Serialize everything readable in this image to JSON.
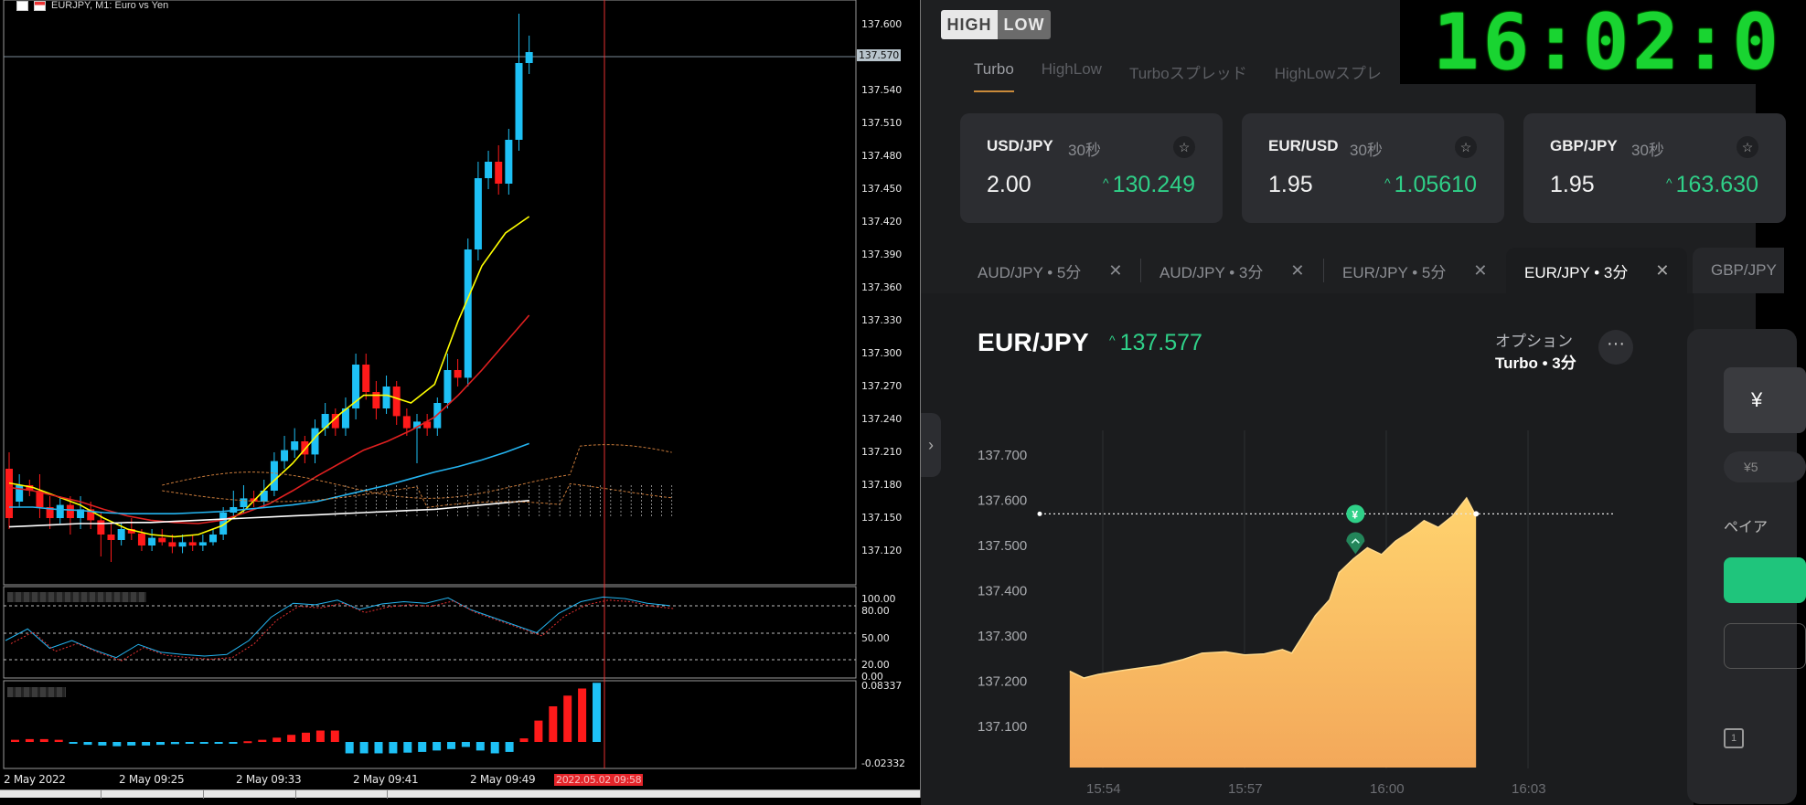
{
  "mt4": {
    "title": "EURJPY, M1:  Euro vs Yen",
    "current_price_label": "137.570",
    "price_axis": [
      "137.600",
      "137.540",
      "137.510",
      "137.480",
      "137.450",
      "137.420",
      "137.390",
      "137.360",
      "137.330",
      "137.300",
      "137.270",
      "137.240",
      "137.210",
      "137.180",
      "137.150",
      "137.120"
    ],
    "stoch_axis": [
      "100.00",
      "80.00",
      "50.00",
      "20.00",
      "0.00"
    ],
    "hist_axis": [
      "0.08337",
      "-0.02332"
    ],
    "time_axis": [
      "2 May 2022",
      "2 May 09:25",
      "2 May 09:33",
      "2 May 09:41",
      "2 May 09:49"
    ],
    "time_highlight": "2022.05.02 09:58",
    "colors": {
      "up": "#1ec0f5",
      "down": "#ff1a1a",
      "ma_fast": "#ffff00",
      "ma_mid": "#e02020",
      "ma_slow": "#24b4f0",
      "ma_long": "#ffffff",
      "cloud": "#c87a3a"
    }
  },
  "highlow": {
    "logo_high": "HIGH",
    "logo_low": "LOW",
    "clock": "16:02:0",
    "tabs": [
      "Turbo",
      "HighLow",
      "Turboスプレッド",
      "HighLowスプレ"
    ],
    "cards": [
      {
        "pair": "USD/JPY",
        "duration": "30秒",
        "payout": "2.00",
        "price": "130.249"
      },
      {
        "pair": "EUR/USD",
        "duration": "30秒",
        "payout": "1.95",
        "price": "1.05610"
      },
      {
        "pair": "GBP/JPY",
        "duration": "30秒",
        "payout": "1.95",
        "price": "163.630"
      }
    ],
    "asset_tabs": [
      "AUD/JPY • 5分",
      "AUD/JPY • 3分",
      "EUR/JPY • 5分",
      "EUR/JPY • 3分",
      "GBP/JPY"
    ],
    "asset_tab_close": "✕",
    "chart": {
      "pair": "EUR/JPY",
      "price": "137.577",
      "option_label": "オプション",
      "option_value": "Turbo • 3分",
      "more": "···",
      "y_ticks": [
        "137.700",
        "137.600",
        "137.500",
        "137.400",
        "137.300",
        "137.200",
        "137.100"
      ],
      "x_ticks": [
        "15:54",
        "15:57",
        "16:00",
        "16:03"
      ],
      "marker_symbol": "¥",
      "colors": {
        "fill_top": "#ffd36e",
        "fill_bottom": "#f3a85a",
        "up": "#2fd088"
      }
    },
    "trade": {
      "amount_symbol": "¥",
      "quick": "¥5",
      "payout_label": "ペイア"
    },
    "arrow_up": "^",
    "star": "☆",
    "side_toggle": "›"
  }
}
